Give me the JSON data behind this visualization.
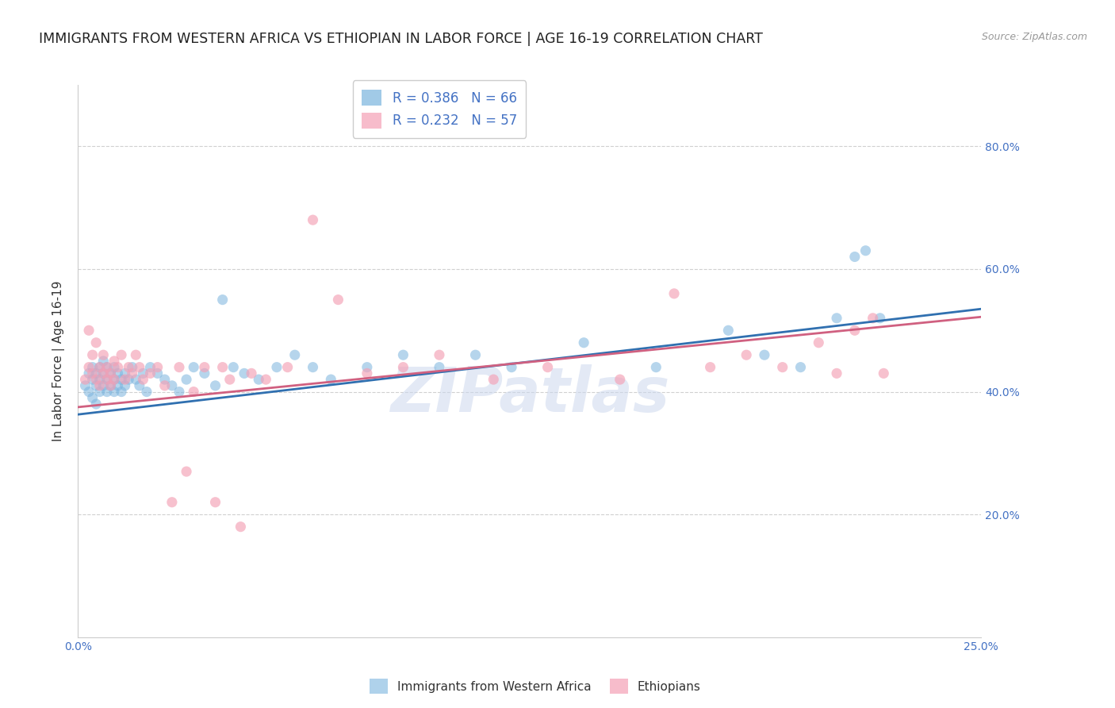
{
  "title": "IMMIGRANTS FROM WESTERN AFRICA VS ETHIOPIAN IN LABOR FORCE | AGE 16-19 CORRELATION CHART",
  "source": "Source: ZipAtlas.com",
  "ylabel": "In Labor Force | Age 16-19",
  "xlim": [
    0.0,
    0.25
  ],
  "ylim": [
    0.0,
    0.9
  ],
  "yticks": [
    0.2,
    0.4,
    0.6,
    0.8
  ],
  "ytick_labels": [
    "20.0%",
    "40.0%",
    "60.0%",
    "80.0%"
  ],
  "xtick_positions": [
    0.0,
    0.05,
    0.1,
    0.15,
    0.2,
    0.25
  ],
  "xtick_labels": [
    "0.0%",
    "",
    "",
    "",
    "",
    "25.0%"
  ],
  "blue_color": "#7ab4de",
  "pink_color": "#f4a0b5",
  "blue_line_color": "#3070b0",
  "pink_line_color": "#d06080",
  "watermark": "ZIPatlas",
  "background_color": "#ffffff",
  "grid_color": "#d0d0d0",
  "axis_color": "#4472c4",
  "title_color": "#222222",
  "title_fontsize": 12.5,
  "ylabel_color": "#333333",
  "ylabel_fontsize": 11,
  "blue_scatter_x": [
    0.002,
    0.003,
    0.003,
    0.004,
    0.004,
    0.004,
    0.005,
    0.005,
    0.005,
    0.006,
    0.006,
    0.006,
    0.007,
    0.007,
    0.007,
    0.008,
    0.008,
    0.008,
    0.009,
    0.009,
    0.01,
    0.01,
    0.01,
    0.011,
    0.011,
    0.012,
    0.012,
    0.013,
    0.013,
    0.014,
    0.015,
    0.016,
    0.017,
    0.018,
    0.019,
    0.02,
    0.022,
    0.024,
    0.026,
    0.028,
    0.03,
    0.032,
    0.035,
    0.038,
    0.04,
    0.043,
    0.046,
    0.05,
    0.055,
    0.06,
    0.065,
    0.07,
    0.08,
    0.09,
    0.1,
    0.11,
    0.12,
    0.14,
    0.16,
    0.18,
    0.19,
    0.2,
    0.21,
    0.215,
    0.218,
    0.222
  ],
  "blue_scatter_y": [
    0.41,
    0.43,
    0.4,
    0.42,
    0.44,
    0.39,
    0.43,
    0.41,
    0.38,
    0.44,
    0.42,
    0.4,
    0.43,
    0.41,
    0.45,
    0.42,
    0.4,
    0.44,
    0.41,
    0.43,
    0.42,
    0.4,
    0.44,
    0.41,
    0.43,
    0.42,
    0.4,
    0.41,
    0.43,
    0.42,
    0.44,
    0.42,
    0.41,
    0.43,
    0.4,
    0.44,
    0.43,
    0.42,
    0.41,
    0.4,
    0.42,
    0.44,
    0.43,
    0.41,
    0.55,
    0.44,
    0.43,
    0.42,
    0.44,
    0.46,
    0.44,
    0.42,
    0.44,
    0.46,
    0.44,
    0.46,
    0.44,
    0.48,
    0.44,
    0.5,
    0.46,
    0.44,
    0.52,
    0.62,
    0.63,
    0.52
  ],
  "pink_scatter_x": [
    0.002,
    0.003,
    0.003,
    0.004,
    0.004,
    0.005,
    0.005,
    0.006,
    0.006,
    0.007,
    0.007,
    0.008,
    0.008,
    0.009,
    0.009,
    0.01,
    0.01,
    0.011,
    0.012,
    0.013,
    0.014,
    0.015,
    0.016,
    0.017,
    0.018,
    0.02,
    0.022,
    0.024,
    0.026,
    0.028,
    0.03,
    0.032,
    0.035,
    0.038,
    0.04,
    0.042,
    0.045,
    0.048,
    0.052,
    0.058,
    0.065,
    0.072,
    0.08,
    0.09,
    0.1,
    0.115,
    0.13,
    0.15,
    0.165,
    0.175,
    0.185,
    0.195,
    0.205,
    0.21,
    0.215,
    0.22,
    0.223
  ],
  "pink_scatter_y": [
    0.42,
    0.5,
    0.44,
    0.43,
    0.46,
    0.42,
    0.48,
    0.44,
    0.41,
    0.43,
    0.46,
    0.42,
    0.44,
    0.41,
    0.43,
    0.45,
    0.42,
    0.44,
    0.46,
    0.42,
    0.44,
    0.43,
    0.46,
    0.44,
    0.42,
    0.43,
    0.44,
    0.41,
    0.22,
    0.44,
    0.27,
    0.4,
    0.44,
    0.22,
    0.44,
    0.42,
    0.18,
    0.43,
    0.42,
    0.44,
    0.68,
    0.55,
    0.43,
    0.44,
    0.46,
    0.42,
    0.44,
    0.42,
    0.56,
    0.44,
    0.46,
    0.44,
    0.48,
    0.43,
    0.5,
    0.52,
    0.43
  ]
}
